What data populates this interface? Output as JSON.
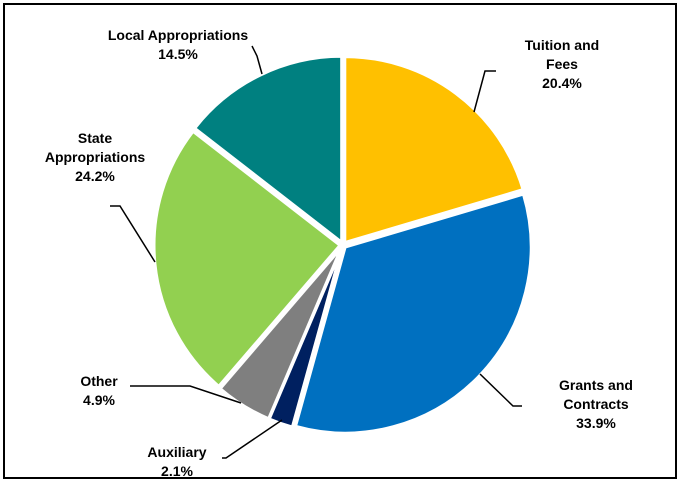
{
  "chart_data": {
    "type": "pie",
    "title": "",
    "unit": "%",
    "slices": [
      {
        "name": "Tuition and Fees",
        "label_lines": [
          "Tuition and",
          "Fees"
        ],
        "pct_text": "20.4%",
        "value": 20.4,
        "color": "#FFC000"
      },
      {
        "name": "Grants and Contracts",
        "label_lines": [
          "Grants and",
          "Contracts"
        ],
        "pct_text": "33.9%",
        "value": 33.9,
        "color": "#0070C0"
      },
      {
        "name": "Auxiliary",
        "label_lines": [
          "Auxiliary"
        ],
        "pct_text": "2.1%",
        "value": 2.1,
        "color": "#002060"
      },
      {
        "name": "Other",
        "label_lines": [
          "Other"
        ],
        "pct_text": "4.9%",
        "value": 4.9,
        "color": "#7F7F7F"
      },
      {
        "name": "State Appropriations",
        "label_lines": [
          "State",
          "Appropriations"
        ],
        "pct_text": "24.2%",
        "value": 24.2,
        "color": "#92D050"
      },
      {
        "name": "Local Appropriations",
        "label_lines": [
          "Local Appropriations"
        ],
        "pct_text": "14.5%",
        "value": 14.5,
        "color": "#008080"
      }
    ]
  }
}
